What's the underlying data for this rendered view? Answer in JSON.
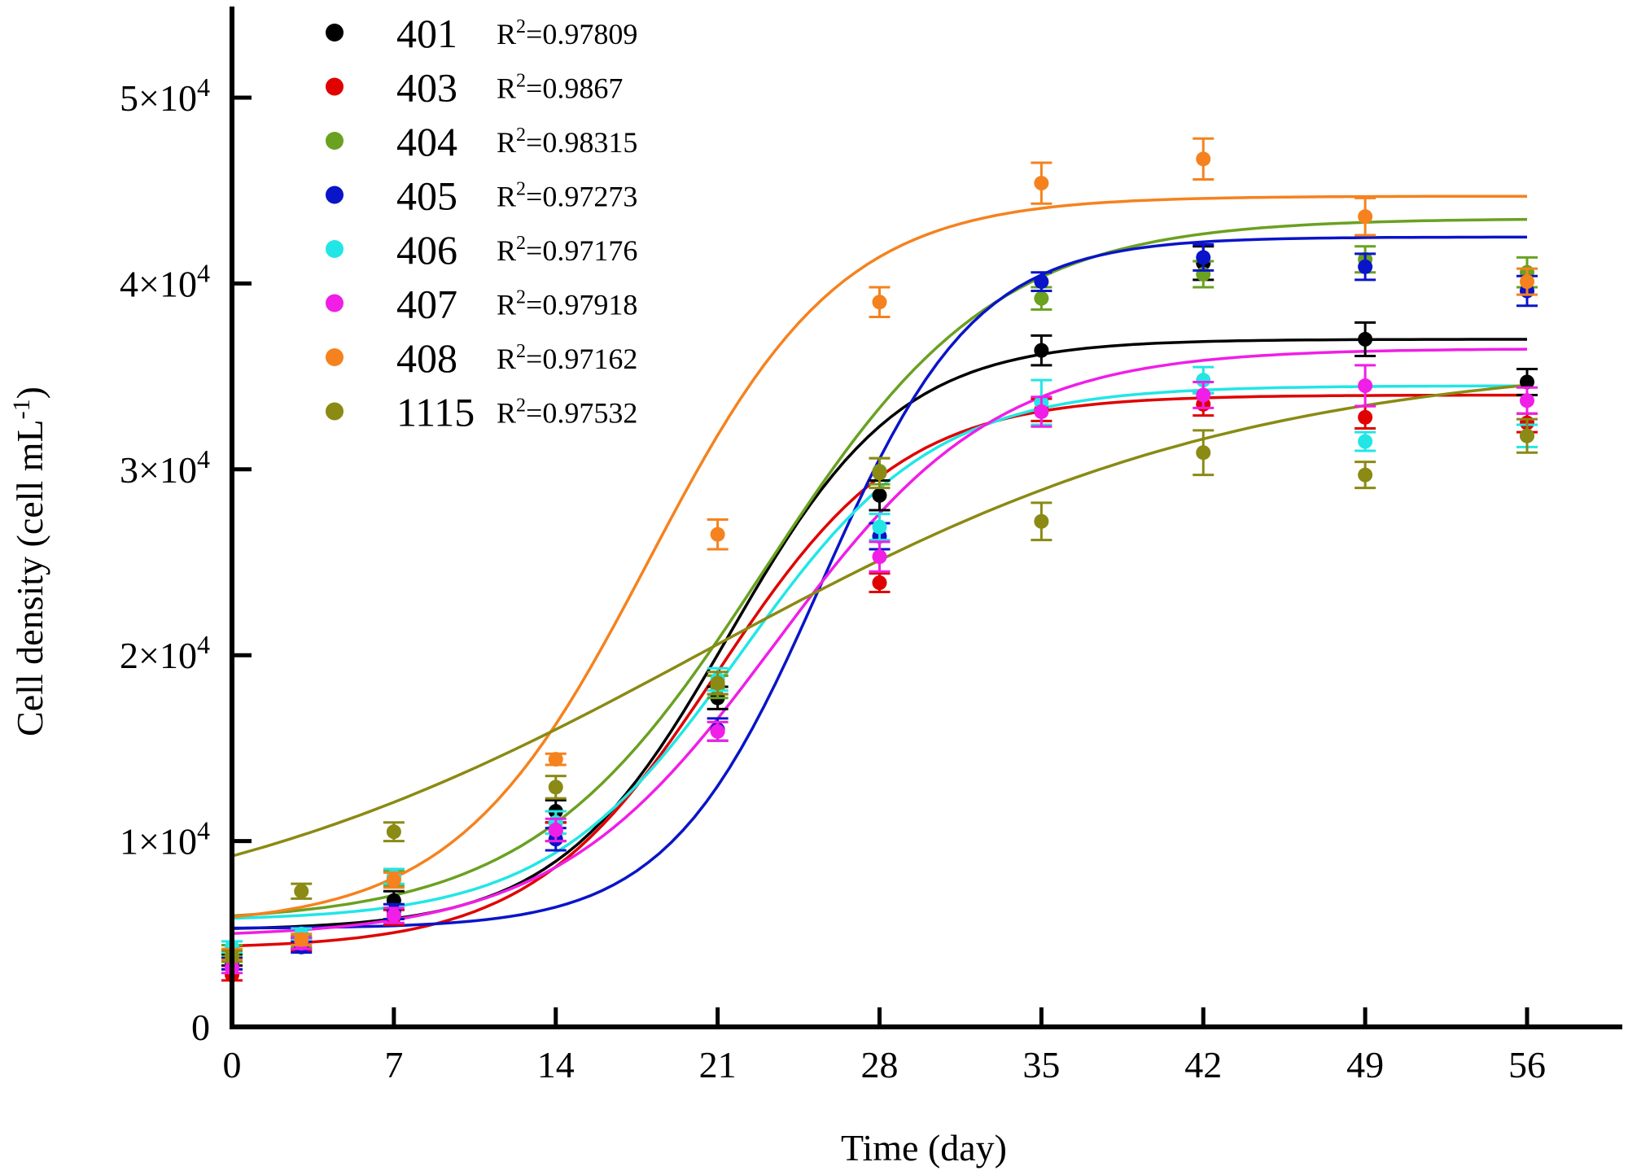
{
  "chart_data": {
    "type": "scatter",
    "title": "",
    "xlabel": "Time (day)",
    "ylabel": "Cell density (cell mL⁻¹)",
    "ylabel_base": "Cell density (cell mL",
    "ylabel_sup": "-1",
    "ylabel_end": ")",
    "xlim": [
      0,
      60
    ],
    "ylim": [
      0,
      55000
    ],
    "x_ticks": [
      0,
      7,
      14,
      21,
      28,
      35,
      42,
      49,
      56
    ],
    "x_tick_labels": [
      "0",
      "7",
      "14",
      "21",
      "28",
      "35",
      "42",
      "49",
      "56"
    ],
    "y_ticks": [
      0,
      10000,
      20000,
      30000,
      40000,
      50000
    ],
    "y_tick_labels": [
      {
        "base": "0",
        "sup": ""
      },
      {
        "base": "1×10",
        "sup": "4"
      },
      {
        "base": "2×10",
        "sup": "4"
      },
      {
        "base": "3×10",
        "sup": "4"
      },
      {
        "base": "4×10",
        "sup": "4"
      },
      {
        "base": "5×10",
        "sup": "4"
      }
    ],
    "grid": false,
    "legend_position": "top-left",
    "fit_model": "logistic",
    "x": [
      0,
      3,
      7,
      14,
      21,
      28,
      35,
      42,
      49,
      56
    ],
    "series": [
      {
        "name": "401",
        "r2_label": "R",
        "r2_sup": "2",
        "r2_value": "=0.97809",
        "color": "#000000",
        "values": [
          3600,
          4500,
          6800,
          11600,
          17700,
          28600,
          36400,
          41100,
          37000,
          34700
        ],
        "errors": [
          300,
          300,
          500,
          600,
          600,
          800,
          800,
          900,
          900,
          700
        ],
        "fit": {
          "K": 37000,
          "y0": 5200,
          "r": 0.27,
          "t0": 21.5
        }
      },
      {
        "name": "403",
        "r2_label": "R",
        "r2_sup": "2",
        "r2_value": "=0.9867",
        "color": "#e00000",
        "values": [
          2800,
          4400,
          5900,
          10500,
          18400,
          23900,
          33200,
          33500,
          32800,
          32500
        ],
        "errors": [
          300,
          300,
          400,
          500,
          500,
          500,
          600,
          600,
          600,
          500
        ],
        "fit": {
          "K": 34000,
          "y0": 4200,
          "r": 0.25,
          "t0": 21.0
        }
      },
      {
        "name": "404",
        "r2_label": "R",
        "r2_sup": "2",
        "r2_value": "=0.98315",
        "color": "#6aa121",
        "values": [
          4100,
          4600,
          8000,
          11000,
          18300,
          29900,
          39200,
          40500,
          41300,
          40600
        ],
        "errors": [
          300,
          300,
          400,
          600,
          600,
          700,
          600,
          700,
          700,
          800
        ],
        "fit": {
          "K": 43500,
          "y0": 5600,
          "r": 0.2,
          "t0": 23.0
        }
      },
      {
        "name": "405",
        "r2_label": "R",
        "r2_sup": "2",
        "r2_value": "=0.97273",
        "color": "#0a14c8",
        "values": [
          3400,
          4300,
          6200,
          10100,
          16000,
          26400,
          40100,
          41400,
          40900,
          39600
        ],
        "errors": [
          300,
          300,
          400,
          600,
          600,
          700,
          500,
          700,
          700,
          800
        ],
        "fit": {
          "K": 42500,
          "y0": 5300,
          "r": 0.3,
          "t0": 25.5
        }
      },
      {
        "name": "406",
        "r2_label": "R",
        "r2_sup": "2",
        "r2_value": "=0.97176",
        "color": "#22e6e6",
        "values": [
          4300,
          5000,
          8100,
          11000,
          18700,
          26900,
          33600,
          34800,
          31500,
          31800
        ],
        "errors": [
          300,
          300,
          400,
          600,
          600,
          700,
          1200,
          700,
          500,
          600
        ],
        "fit": {
          "K": 34500,
          "y0": 5700,
          "r": 0.24,
          "t0": 22.0
        }
      },
      {
        "name": "407",
        "r2_label": "R",
        "r2_sup": "2",
        "r2_value": "=0.97918",
        "color": "#f01ee6",
        "values": [
          3200,
          4500,
          6000,
          10600,
          15900,
          25300,
          33100,
          34000,
          34500,
          33700
        ],
        "errors": [
          300,
          300,
          400,
          600,
          500,
          800,
          800,
          700,
          1100,
          700
        ],
        "fit": {
          "K": 36500,
          "y0": 4800,
          "r": 0.21,
          "t0": 23.5
        }
      },
      {
        "name": "408",
        "r2_label": "R",
        "r2_sup": "2",
        "r2_value": "=0.97162",
        "color": "#f5821e",
        "values": [
          3900,
          4700,
          7900,
          14400,
          26500,
          39000,
          45400,
          46700,
          43600,
          40100
        ],
        "errors": [
          300,
          300,
          400,
          300,
          800,
          800,
          1100,
          1100,
          1000,
          700
        ],
        "fit": {
          "K": 44700,
          "y0": 5400,
          "r": 0.24,
          "t0": 18.0
        }
      },
      {
        "name": "1115",
        "r2_label": "R",
        "r2_sup": "2",
        "r2_value": "=0.97532",
        "color": "#8a8a14",
        "values": [
          3800,
          7300,
          10500,
          12900,
          18500,
          29800,
          27200,
          30900,
          29700,
          31800
        ],
        "errors": [
          300,
          400,
          500,
          600,
          600,
          800,
          1000,
          1200,
          700,
          900
        ],
        "fit": {
          "K": 36000,
          "y0": 4500,
          "r": 0.085,
          "t0": 20.5
        }
      }
    ]
  }
}
